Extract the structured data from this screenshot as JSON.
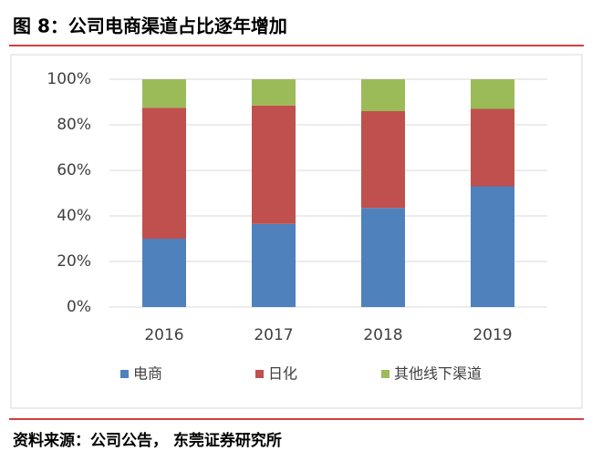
{
  "chart_data": {
    "type": "stacked_bar",
    "title": "图 8：公司电商渠道占比逐年增加",
    "source": "资料来源：公司公告， 东莞证券研究所",
    "categories": [
      "2016",
      "2017",
      "2018",
      "2019"
    ],
    "series": [
      {
        "name": "电商",
        "color": "#4f81bd",
        "values": [
          30,
          36.5,
          43.5,
          53
        ]
      },
      {
        "name": "日化",
        "color": "#c0504d",
        "values": [
          57.5,
          52,
          42.5,
          34
        ]
      },
      {
        "name": "其他线下渠道",
        "color": "#9bbb59",
        "values": [
          12.5,
          11.5,
          14,
          13
        ]
      }
    ],
    "ylim": [
      0,
      100
    ],
    "yticks": [
      {
        "value": 0,
        "label": "0%"
      },
      {
        "value": 20,
        "label": "20%"
      },
      {
        "value": 40,
        "label": "40%"
      },
      {
        "value": 60,
        "label": "60%"
      },
      {
        "value": 80,
        "label": "80%"
      },
      {
        "value": 100,
        "label": "100%"
      }
    ],
    "legend": "bottom"
  }
}
